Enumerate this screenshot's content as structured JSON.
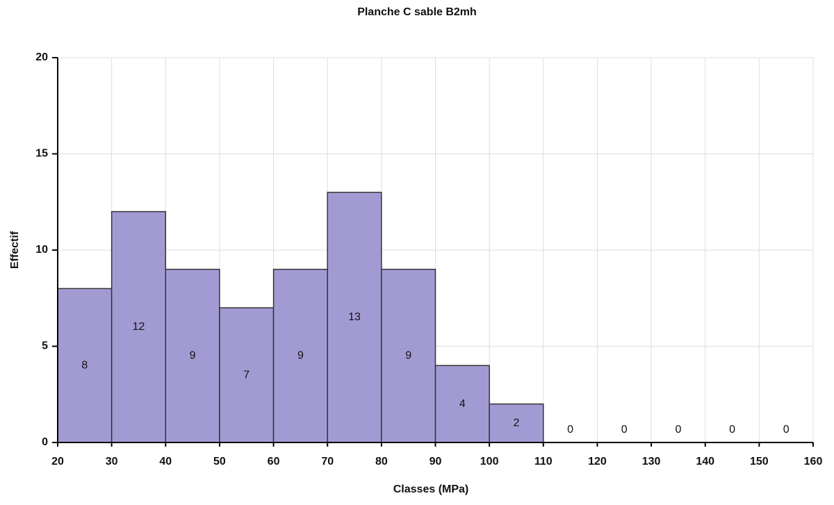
{
  "chart_data": {
    "type": "histogram",
    "title": "Planche C sable B2mh",
    "x_label": "Classes (MPa)",
    "y_label": "Effectif",
    "bins": [
      20,
      30,
      40,
      50,
      60,
      70,
      80,
      90,
      100,
      110,
      120,
      130,
      140,
      150,
      160
    ],
    "values": [
      8,
      12,
      9,
      7,
      9,
      13,
      9,
      4,
      2,
      0,
      0,
      0,
      0,
      0
    ],
    "color": "#a29bd3",
    "xlim": [
      20,
      160
    ],
    "ylim": [
      0,
      20
    ],
    "xticks": [
      20,
      30,
      40,
      50,
      60,
      70,
      80,
      90,
      100,
      110,
      120,
      130,
      140,
      150,
      160
    ],
    "yticks": [
      0,
      5,
      10,
      15,
      20
    ],
    "grid": true
  }
}
